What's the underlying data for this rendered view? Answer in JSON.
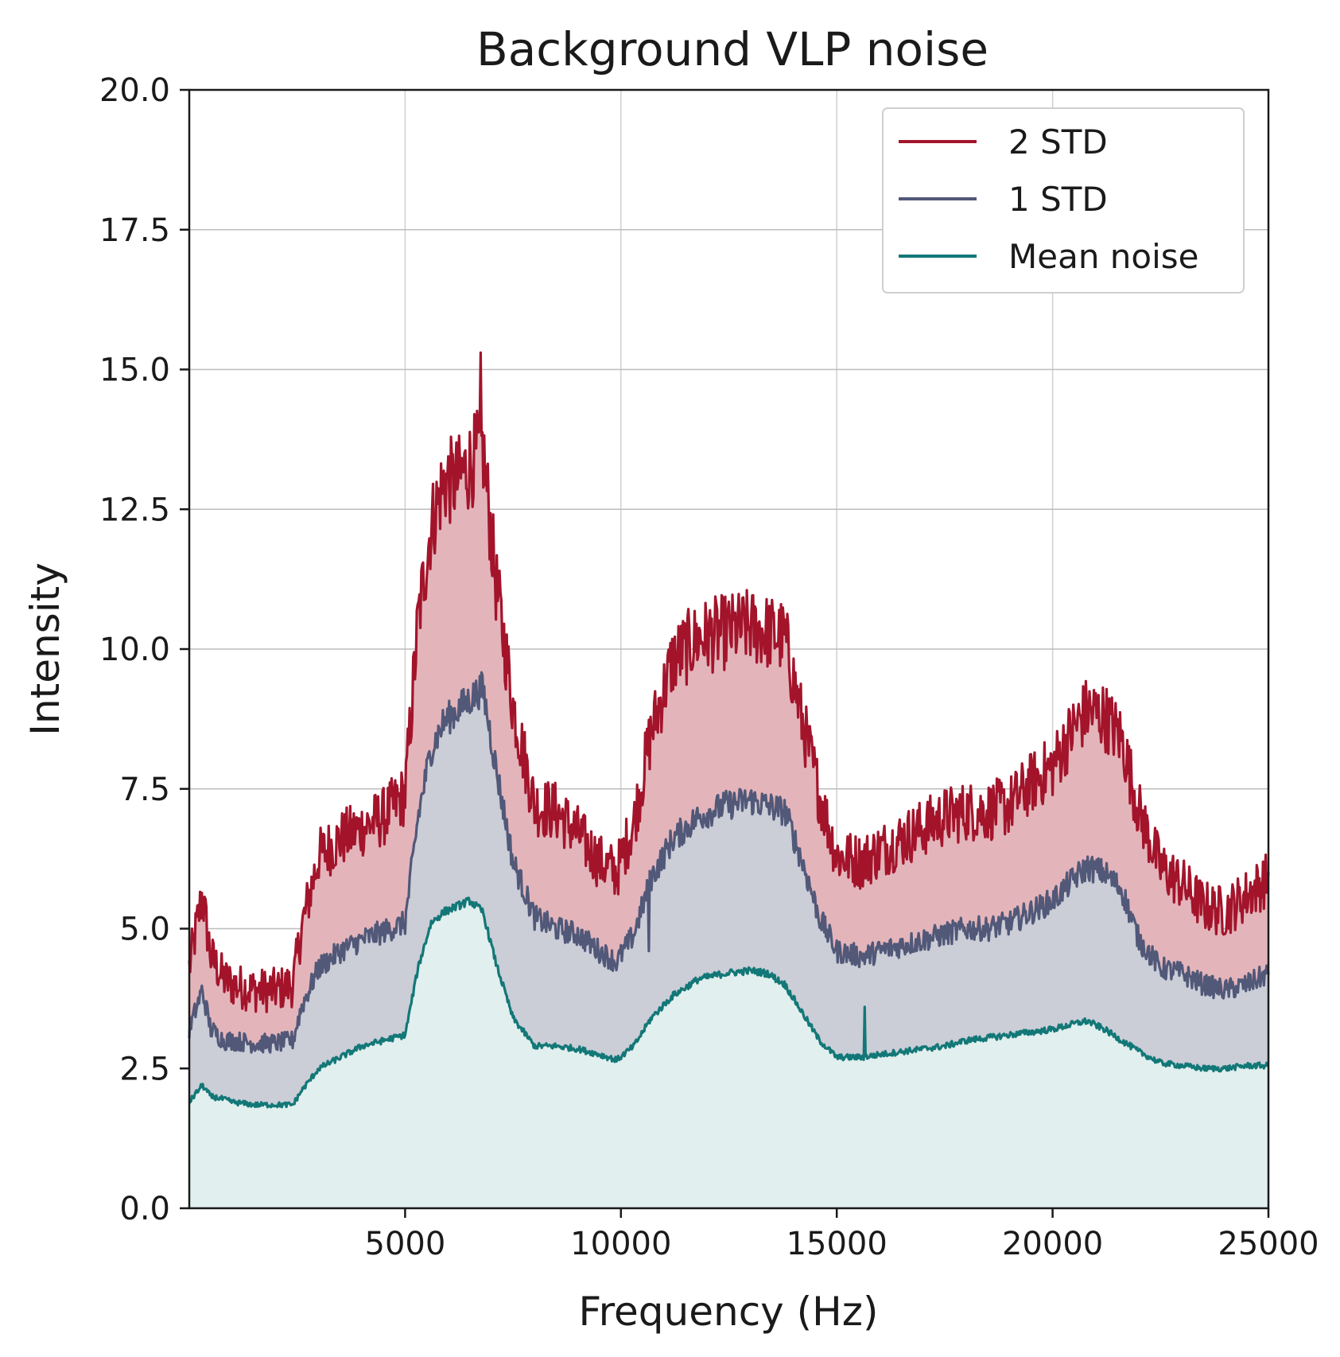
{
  "chart_data": {
    "type": "area",
    "title": "Background VLP noise",
    "xlabel": "Frequency (Hz)",
    "ylabel": "Intensity",
    "xlim": [
      0,
      25000
    ],
    "ylim": [
      0,
      20
    ],
    "xticks": [
      5000,
      10000,
      15000,
      20000,
      25000
    ],
    "xtick_labels": [
      "5000",
      "10000",
      "15000",
      "20000",
      "25000"
    ],
    "yticks": [
      0,
      2.5,
      5,
      7.5,
      10,
      12.5,
      15,
      17.5,
      20
    ],
    "ytick_labels": [
      "0.0",
      "2.5",
      "5.0",
      "7.5",
      "10.0",
      "12.5",
      "15.0",
      "17.5",
      "20.0"
    ],
    "grid": true,
    "legend_position": "top-right",
    "series": [
      {
        "name": "2 STD",
        "color": "#a3142b",
        "fill": "#e3b5bb",
        "x": [
          0,
          300,
          500,
          800,
          1000,
          1500,
          2000,
          2400,
          2600,
          3000,
          3500,
          4000,
          4500,
          5000,
          5300,
          5600,
          5900,
          6200,
          6500,
          6800,
          7100,
          7500,
          8000,
          8500,
          9000,
          9500,
          9900,
          10300,
          10700,
          11200,
          11800,
          12400,
          13000,
          13400,
          13800,
          14200,
          14600,
          15000,
          15600,
          16000,
          16500,
          17000,
          17500,
          18000,
          18500,
          19000,
          19500,
          20000,
          20500,
          20800,
          21200,
          21600,
          22000,
          22500,
          23000,
          23500,
          24000,
          24500,
          25000
        ],
        "values": [
          4.3,
          5.6,
          4.5,
          4.1,
          4.0,
          3.9,
          3.9,
          4.0,
          5.0,
          6.3,
          6.6,
          6.8,
          7.0,
          7.4,
          10.5,
          12.2,
          13.0,
          13.0,
          13.3,
          13.6,
          11.2,
          9.0,
          7.2,
          7.1,
          6.7,
          6.2,
          6.0,
          6.9,
          8.5,
          9.8,
          10.2,
          10.3,
          10.4,
          10.3,
          10.2,
          8.7,
          7.4,
          6.3,
          6.2,
          6.4,
          6.6,
          6.8,
          7.0,
          7.1,
          7.1,
          7.2,
          7.6,
          7.9,
          8.6,
          8.9,
          8.8,
          8.4,
          7.1,
          6.1,
          5.8,
          5.4,
          5.3,
          5.6,
          5.9
        ]
      },
      {
        "name": "1 STD",
        "color": "#515878",
        "fill": "#cbcdd7",
        "x": [
          0,
          300,
          500,
          800,
          1000,
          1500,
          2000,
          2400,
          2600,
          3000,
          3500,
          4000,
          4500,
          5000,
          5300,
          5600,
          5900,
          6200,
          6500,
          6800,
          7100,
          7500,
          8000,
          8500,
          9000,
          9500,
          9900,
          10300,
          10700,
          11200,
          11800,
          12400,
          13000,
          13400,
          13800,
          14200,
          14600,
          15000,
          15600,
          16000,
          16500,
          17000,
          17500,
          18000,
          18500,
          19000,
          19500,
          20000,
          20500,
          20800,
          21200,
          21600,
          22000,
          22500,
          23000,
          23500,
          24000,
          24500,
          25000
        ],
        "values": [
          3.2,
          3.9,
          3.2,
          3.0,
          3.0,
          2.95,
          2.95,
          3.0,
          3.6,
          4.3,
          4.6,
          4.8,
          4.95,
          5.1,
          7.0,
          8.2,
          8.7,
          8.9,
          9.1,
          9.3,
          7.9,
          6.2,
          5.2,
          5.0,
          4.9,
          4.6,
          4.4,
          4.9,
          5.9,
          6.6,
          7.0,
          7.2,
          7.3,
          7.2,
          7.1,
          6.2,
          5.2,
          4.6,
          4.5,
          4.6,
          4.7,
          4.8,
          4.9,
          5.0,
          5.0,
          5.1,
          5.3,
          5.5,
          5.9,
          6.1,
          6.0,
          5.7,
          4.8,
          4.3,
          4.2,
          4.0,
          3.9,
          4.0,
          4.2
        ]
      },
      {
        "name": "Mean noise",
        "color": "#127877",
        "fill": "#e1efee",
        "x": [
          0,
          300,
          500,
          800,
          1000,
          1500,
          2000,
          2400,
          2600,
          3000,
          3500,
          4000,
          4500,
          5000,
          5300,
          5600,
          5900,
          6200,
          6500,
          6800,
          7100,
          7500,
          8000,
          8500,
          9000,
          9500,
          9900,
          10300,
          10700,
          11200,
          11800,
          12400,
          13000,
          13400,
          13800,
          14200,
          14600,
          15000,
          15600,
          16000,
          16500,
          17000,
          17500,
          18000,
          18500,
          19000,
          19500,
          20000,
          20500,
          20800,
          21200,
          21600,
          22000,
          22500,
          23000,
          23500,
          24000,
          24500,
          25000
        ],
        "values": [
          1.9,
          2.2,
          2.0,
          1.95,
          1.9,
          1.85,
          1.85,
          1.85,
          2.1,
          2.5,
          2.7,
          2.9,
          3.0,
          3.1,
          4.3,
          5.1,
          5.3,
          5.4,
          5.5,
          5.3,
          4.4,
          3.4,
          2.9,
          2.9,
          2.85,
          2.75,
          2.65,
          2.9,
          3.4,
          3.8,
          4.1,
          4.2,
          4.25,
          4.2,
          4.0,
          3.5,
          3.0,
          2.7,
          2.7,
          2.75,
          2.8,
          2.85,
          2.9,
          3.0,
          3.05,
          3.1,
          3.15,
          3.2,
          3.3,
          3.35,
          3.2,
          3.0,
          2.8,
          2.6,
          2.55,
          2.5,
          2.5,
          2.55,
          2.55
        ]
      }
    ],
    "annotations": [
      {
        "series": "2 STD",
        "x": 6750,
        "y": 15.3,
        "label": ""
      },
      {
        "series": "1 STD",
        "x": 10650,
        "y": 4.6,
        "label": ""
      },
      {
        "series": "Mean noise",
        "x": 15650,
        "y": 3.6,
        "label": ""
      }
    ]
  }
}
